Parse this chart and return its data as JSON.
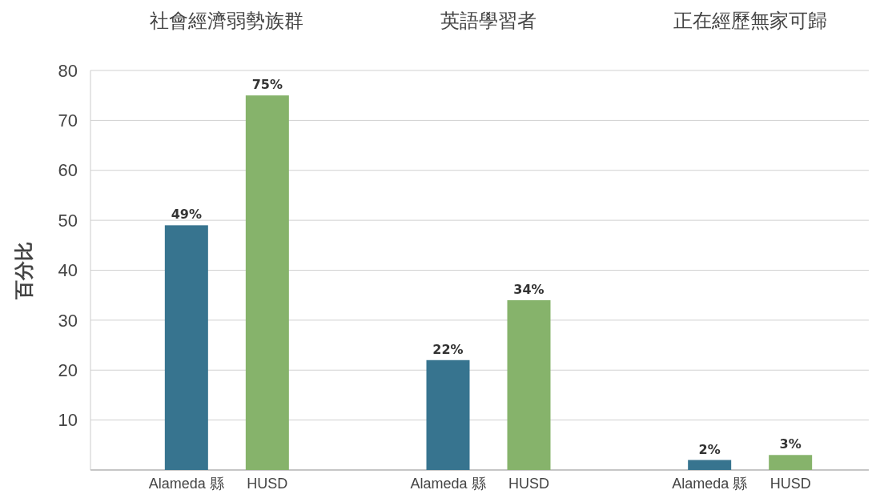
{
  "chart_data": {
    "type": "bar",
    "ylabel": "百分比",
    "categories": [
      "社會經濟弱勢族群",
      "英語學習者",
      "正在經歷無家可歸"
    ],
    "series": [
      {
        "name": "Alameda 縣",
        "color": "#37748f",
        "values": [
          49,
          22,
          2
        ],
        "value_labels": [
          "49%",
          "22%",
          "2%"
        ]
      },
      {
        "name": "HUSD",
        "color": "#86b36b",
        "values": [
          75,
          34,
          3
        ],
        "value_labels": [
          "75%",
          "34%",
          "3%"
        ]
      }
    ],
    "ylim": [
      0,
      80
    ],
    "yticks": [
      {
        "value": 0,
        "label": null
      },
      10,
      20,
      30,
      40,
      50,
      60,
      70,
      80
    ],
    "grid": "y"
  }
}
